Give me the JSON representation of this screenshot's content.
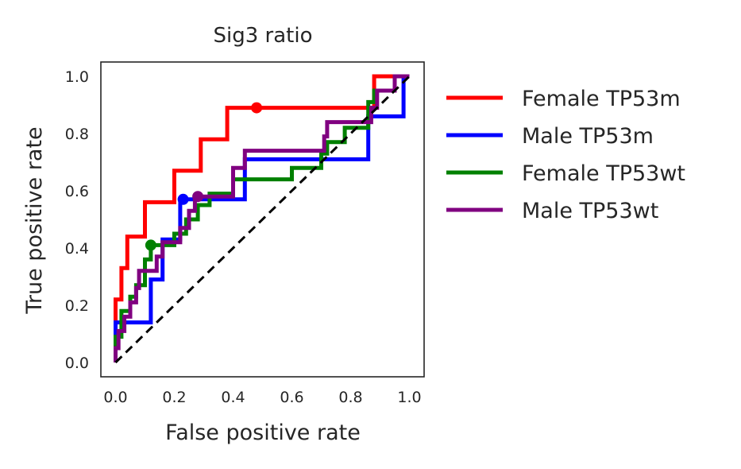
{
  "chart_data": {
    "type": "line",
    "title": "Sig3 ratio",
    "xlabel": "False positive rate",
    "ylabel": "True positive rate",
    "xlim": [
      -0.05,
      1.05
    ],
    "ylim": [
      -0.05,
      1.05
    ],
    "xticks": [
      0.0,
      0.2,
      0.4,
      0.6,
      0.8,
      1.0
    ],
    "yticks": [
      0.0,
      0.2,
      0.4,
      0.6,
      0.8,
      1.0
    ],
    "xtick_labels": [
      "0.0",
      "0.2",
      "0.4",
      "0.6",
      "0.8",
      "1.0"
    ],
    "ytick_labels": [
      "0.0",
      "0.2",
      "0.4",
      "0.6",
      "0.8",
      "1.0"
    ],
    "grid": false,
    "legend_placement": "outside-right",
    "diagonal": {
      "x": [
        0,
        1
      ],
      "y": [
        0,
        1
      ],
      "style": "dashed",
      "color": "#000000"
    },
    "series": [
      {
        "name": "Female TP53m",
        "color": "#ff0000",
        "x": [
          0,
          0,
          0.02,
          0.02,
          0.04,
          0.04,
          0.1,
          0.1,
          0.2,
          0.2,
          0.29,
          0.29,
          0.38,
          0.38,
          0.48,
          0.48,
          0.88,
          0.88,
          1.0
        ],
        "y": [
          0,
          0.22,
          0.22,
          0.33,
          0.33,
          0.44,
          0.44,
          0.56,
          0.56,
          0.67,
          0.67,
          0.78,
          0.78,
          0.89,
          0.89,
          0.89,
          0.89,
          1.0,
          1.0
        ],
        "marker": {
          "x": 0.48,
          "y": 0.89
        }
      },
      {
        "name": "Male TP53m",
        "color": "#0000ff",
        "x": [
          0,
          0,
          0.12,
          0.12,
          0.16,
          0.16,
          0.22,
          0.22,
          0.3,
          0.3,
          0.44,
          0.44,
          0.7,
          0.7,
          0.86,
          0.86,
          0.98,
          0.98,
          1.0
        ],
        "y": [
          0,
          0.14,
          0.14,
          0.29,
          0.29,
          0.43,
          0.43,
          0.57,
          0.57,
          0.57,
          0.57,
          0.71,
          0.71,
          0.71,
          0.71,
          0.86,
          0.86,
          1.0,
          1.0
        ],
        "marker": {
          "x": 0.23,
          "y": 0.57
        }
      },
      {
        "name": "Female TP53wt",
        "color": "#008000",
        "x": [
          0,
          0,
          0.02,
          0.02,
          0.05,
          0.05,
          0.07,
          0.07,
          0.1,
          0.1,
          0.12,
          0.12,
          0.2,
          0.2,
          0.24,
          0.24,
          0.28,
          0.28,
          0.32,
          0.32,
          0.4,
          0.4,
          0.6,
          0.6,
          0.7,
          0.7,
          0.72,
          0.72,
          0.78,
          0.78,
          0.86,
          0.86,
          0.88,
          0.88,
          0.95,
          0.95,
          1.0
        ],
        "y": [
          0,
          0.09,
          0.09,
          0.18,
          0.18,
          0.23,
          0.23,
          0.27,
          0.27,
          0.36,
          0.36,
          0.41,
          0.41,
          0.45,
          0.45,
          0.5,
          0.5,
          0.55,
          0.55,
          0.59,
          0.59,
          0.64,
          0.64,
          0.68,
          0.68,
          0.73,
          0.73,
          0.77,
          0.77,
          0.82,
          0.82,
          0.91,
          0.91,
          0.95,
          0.95,
          1.0,
          1.0
        ],
        "marker": {
          "x": 0.12,
          "y": 0.41
        }
      },
      {
        "name": "Male TP53wt",
        "color": "#800080",
        "x": [
          0,
          0,
          0.01,
          0.01,
          0.03,
          0.03,
          0.05,
          0.05,
          0.07,
          0.07,
          0.08,
          0.08,
          0.14,
          0.14,
          0.16,
          0.16,
          0.22,
          0.22,
          0.25,
          0.25,
          0.27,
          0.27,
          0.4,
          0.4,
          0.44,
          0.44,
          0.71,
          0.71,
          0.72,
          0.72,
          0.8,
          0.8,
          0.87,
          0.87,
          0.89,
          0.89,
          0.92,
          0.92,
          0.95,
          0.95,
          1.0
        ],
        "y": [
          0,
          0.05,
          0.05,
          0.11,
          0.11,
          0.16,
          0.16,
          0.21,
          0.21,
          0.26,
          0.26,
          0.32,
          0.32,
          0.37,
          0.37,
          0.42,
          0.42,
          0.47,
          0.47,
          0.53,
          0.53,
          0.58,
          0.58,
          0.68,
          0.68,
          0.74,
          0.74,
          0.79,
          0.79,
          0.84,
          0.84,
          0.84,
          0.84,
          0.89,
          0.89,
          0.95,
          0.95,
          0.95,
          0.95,
          1.0,
          1.0
        ],
        "marker": {
          "x": 0.28,
          "y": 0.58
        }
      }
    ]
  }
}
